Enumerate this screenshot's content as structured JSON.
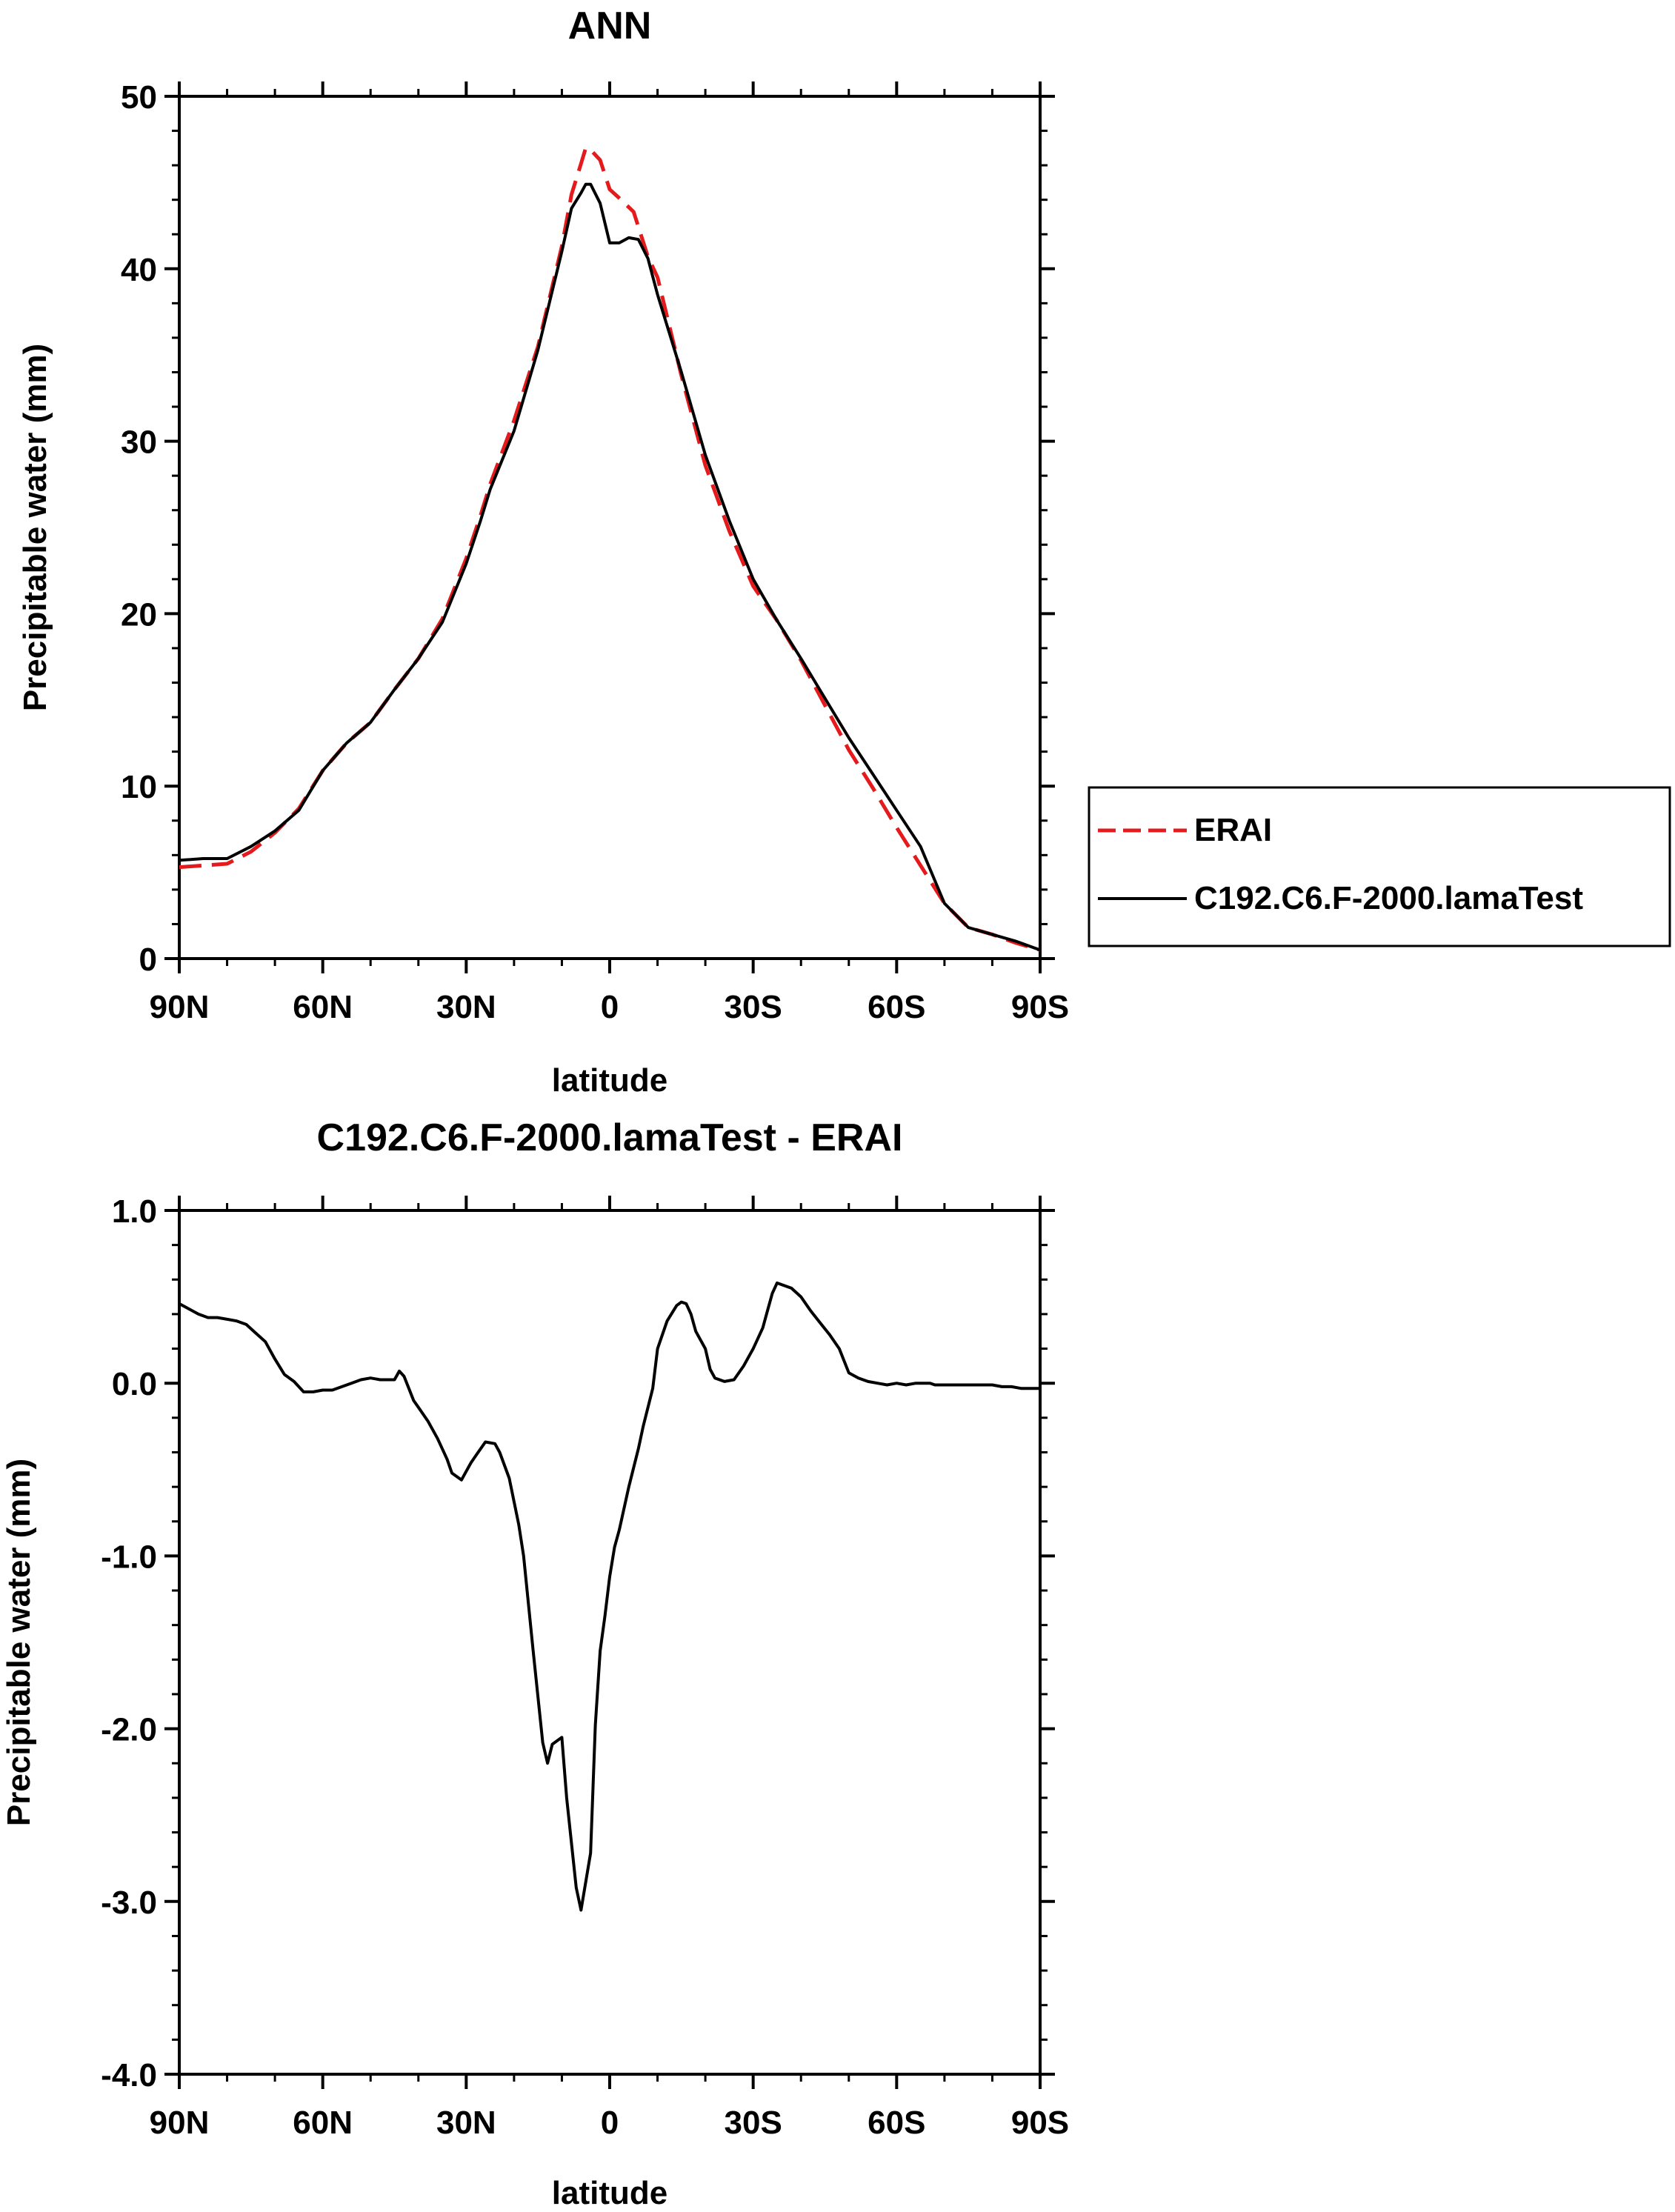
{
  "chart_data": [
    {
      "type": "line",
      "title": "ANN",
      "xlabel": "latitude",
      "ylabel": "Precipitable water (mm)",
      "xlim": [
        90,
        -90
      ],
      "ylim": [
        0,
        50
      ],
      "xticks": [
        90,
        60,
        30,
        0,
        -30,
        -60,
        -90
      ],
      "xtick_labels": [
        "90N",
        "60N",
        "30N",
        "0",
        "30S",
        "60S",
        "90S"
      ],
      "yticks": [
        0,
        10,
        20,
        30,
        40,
        50
      ],
      "ytick_labels": [
        "0",
        "10",
        "20",
        "30",
        "40",
        "50"
      ],
      "legend_position": "right",
      "grid": false,
      "series": [
        {
          "name": "ERAI",
          "color": "#e41a1c",
          "dash": "dashed",
          "x": [
            90,
            85,
            80,
            75,
            70,
            65,
            60,
            55,
            50,
            45,
            40,
            35,
            30,
            27,
            25,
            20,
            15,
            10,
            8,
            6,
            5,
            4,
            2,
            0,
            -2,
            -5,
            -8,
            -10,
            -15,
            -20,
            -25,
            -30,
            -35,
            -40,
            -45,
            -50,
            -55,
            -60,
            -65,
            -70,
            -75,
            -80,
            -85,
            -90
          ],
          "y": [
            5.3,
            5.4,
            5.5,
            6.2,
            7.3,
            8.7,
            10.9,
            12.5,
            13.7,
            15.6,
            17.4,
            19.7,
            23.2,
            25.7,
            27.5,
            31.2,
            35.5,
            41.3,
            44.3,
            46.1,
            47.0,
            46.9,
            46.3,
            44.6,
            44.1,
            43.3,
            40.7,
            39.5,
            33.8,
            28.6,
            24.8,
            21.6,
            19.6,
            17.3,
            14.7,
            12.1,
            9.9,
            7.6,
            5.4,
            3.2,
            1.8,
            1.4,
            0.9,
            0.5
          ]
        },
        {
          "name": "C192.C6.F-2000.lamaTest",
          "color": "#000000",
          "dash": "solid",
          "x": [
            90,
            85,
            80,
            75,
            70,
            65,
            60,
            55,
            50,
            45,
            40,
            35,
            30,
            27,
            25,
            20,
            15,
            10,
            8,
            6,
            5,
            4,
            2,
            0,
            -2,
            -4,
            -6,
            -8,
            -10,
            -15,
            -20,
            -25,
            -30,
            -35,
            -40,
            -45,
            -50,
            -55,
            -60,
            -65,
            -70,
            -75,
            -80,
            -85,
            -90
          ],
          "y": [
            5.7,
            5.8,
            5.8,
            6.5,
            7.4,
            8.6,
            10.9,
            12.5,
            13.7,
            15.6,
            17.4,
            19.5,
            22.9,
            25.4,
            27.2,
            30.6,
            35.3,
            41.0,
            43.5,
            44.4,
            44.9,
            44.9,
            43.8,
            41.5,
            41.5,
            41.8,
            41.7,
            40.6,
            38.5,
            34.0,
            29.2,
            25.4,
            22.0,
            19.6,
            17.4,
            15.1,
            12.8,
            10.7,
            8.6,
            6.5,
            3.2,
            1.8,
            1.4,
            1.0,
            0.5
          ]
        }
      ]
    },
    {
      "type": "line",
      "title": "C192.C6.F-2000.lamaTest - ERAI",
      "xlabel": "latitude",
      "ylabel": "Precipitable water (mm)",
      "xlim": [
        90,
        -90
      ],
      "ylim": [
        -4.0,
        1.0
      ],
      "xticks": [
        90,
        60,
        30,
        0,
        -30,
        -60,
        -90
      ],
      "xtick_labels": [
        "90N",
        "60N",
        "30N",
        "0",
        "30S",
        "60S",
        "90S"
      ],
      "yticks": [
        1.0,
        0.0,
        -1.0,
        -2.0,
        -3.0,
        -4.0
      ],
      "ytick_labels": [
        "1.0",
        "0.0",
        "-1.0",
        "-2.0",
        "-3.0",
        "-4.0"
      ],
      "grid": false,
      "series": [
        {
          "color": "#000000",
          "dash": "solid",
          "x": [
            90,
            88,
            86,
            84,
            82,
            80,
            78,
            76,
            74,
            72,
            70,
            68,
            66,
            64,
            62,
            60,
            58,
            56,
            54,
            52,
            50,
            48,
            46,
            45,
            44,
            43,
            42,
            41,
            40,
            38,
            36,
            34,
            33,
            31,
            29,
            28,
            26,
            24,
            23,
            21,
            19,
            18,
            16,
            14,
            13,
            12,
            10,
            9,
            7,
            6,
            4,
            3,
            2,
            1,
            0,
            -1,
            -2,
            -4,
            -6,
            -7,
            -9,
            -10,
            -12,
            -14,
            -15,
            -16,
            -17,
            -18,
            -20,
            -21,
            -22,
            -24,
            -26,
            -28,
            -30,
            -32,
            -33,
            -34,
            -35,
            -36,
            -38,
            -40,
            -42,
            -44,
            -46,
            -48,
            -50,
            -52,
            -54,
            -56,
            -58,
            -60,
            -62,
            -64,
            -66,
            -67,
            -68,
            -70,
            -72,
            -74,
            -76,
            -78,
            -80,
            -82,
            -84,
            -86,
            -88,
            -90
          ],
          "y": [
            0.46,
            0.43,
            0.4,
            0.38,
            0.38,
            0.37,
            0.36,
            0.34,
            0.29,
            0.24,
            0.14,
            0.05,
            0.01,
            -0.05,
            -0.05,
            -0.04,
            -0.04,
            -0.02,
            0.0,
            0.02,
            0.03,
            0.02,
            0.02,
            0.02,
            0.07,
            0.04,
            -0.03,
            -0.1,
            -0.14,
            -0.22,
            -0.32,
            -0.44,
            -0.52,
            -0.56,
            -0.46,
            -0.42,
            -0.34,
            -0.35,
            -0.4,
            -0.55,
            -0.82,
            -1.0,
            -1.55,
            -2.08,
            -2.2,
            -2.09,
            -2.05,
            -2.4,
            -2.92,
            -3.05,
            -2.72,
            -1.98,
            -1.55,
            -1.35,
            -1.12,
            -0.95,
            -0.85,
            -0.6,
            -0.38,
            -0.25,
            -0.03,
            0.2,
            0.36,
            0.45,
            0.47,
            0.46,
            0.4,
            0.3,
            0.2,
            0.08,
            0.03,
            0.01,
            0.02,
            0.1,
            0.2,
            0.32,
            0.42,
            0.52,
            0.58,
            0.57,
            0.55,
            0.5,
            0.42,
            0.35,
            0.28,
            0.2,
            0.06,
            0.03,
            0.01,
            0.0,
            -0.01,
            0.0,
            -0.01,
            0.0,
            0.0,
            0.0,
            -0.01,
            -0.01,
            -0.01,
            -0.01,
            -0.01,
            -0.01,
            -0.01,
            -0.02,
            -0.02,
            -0.03,
            -0.03,
            -0.03
          ]
        }
      ]
    }
  ]
}
